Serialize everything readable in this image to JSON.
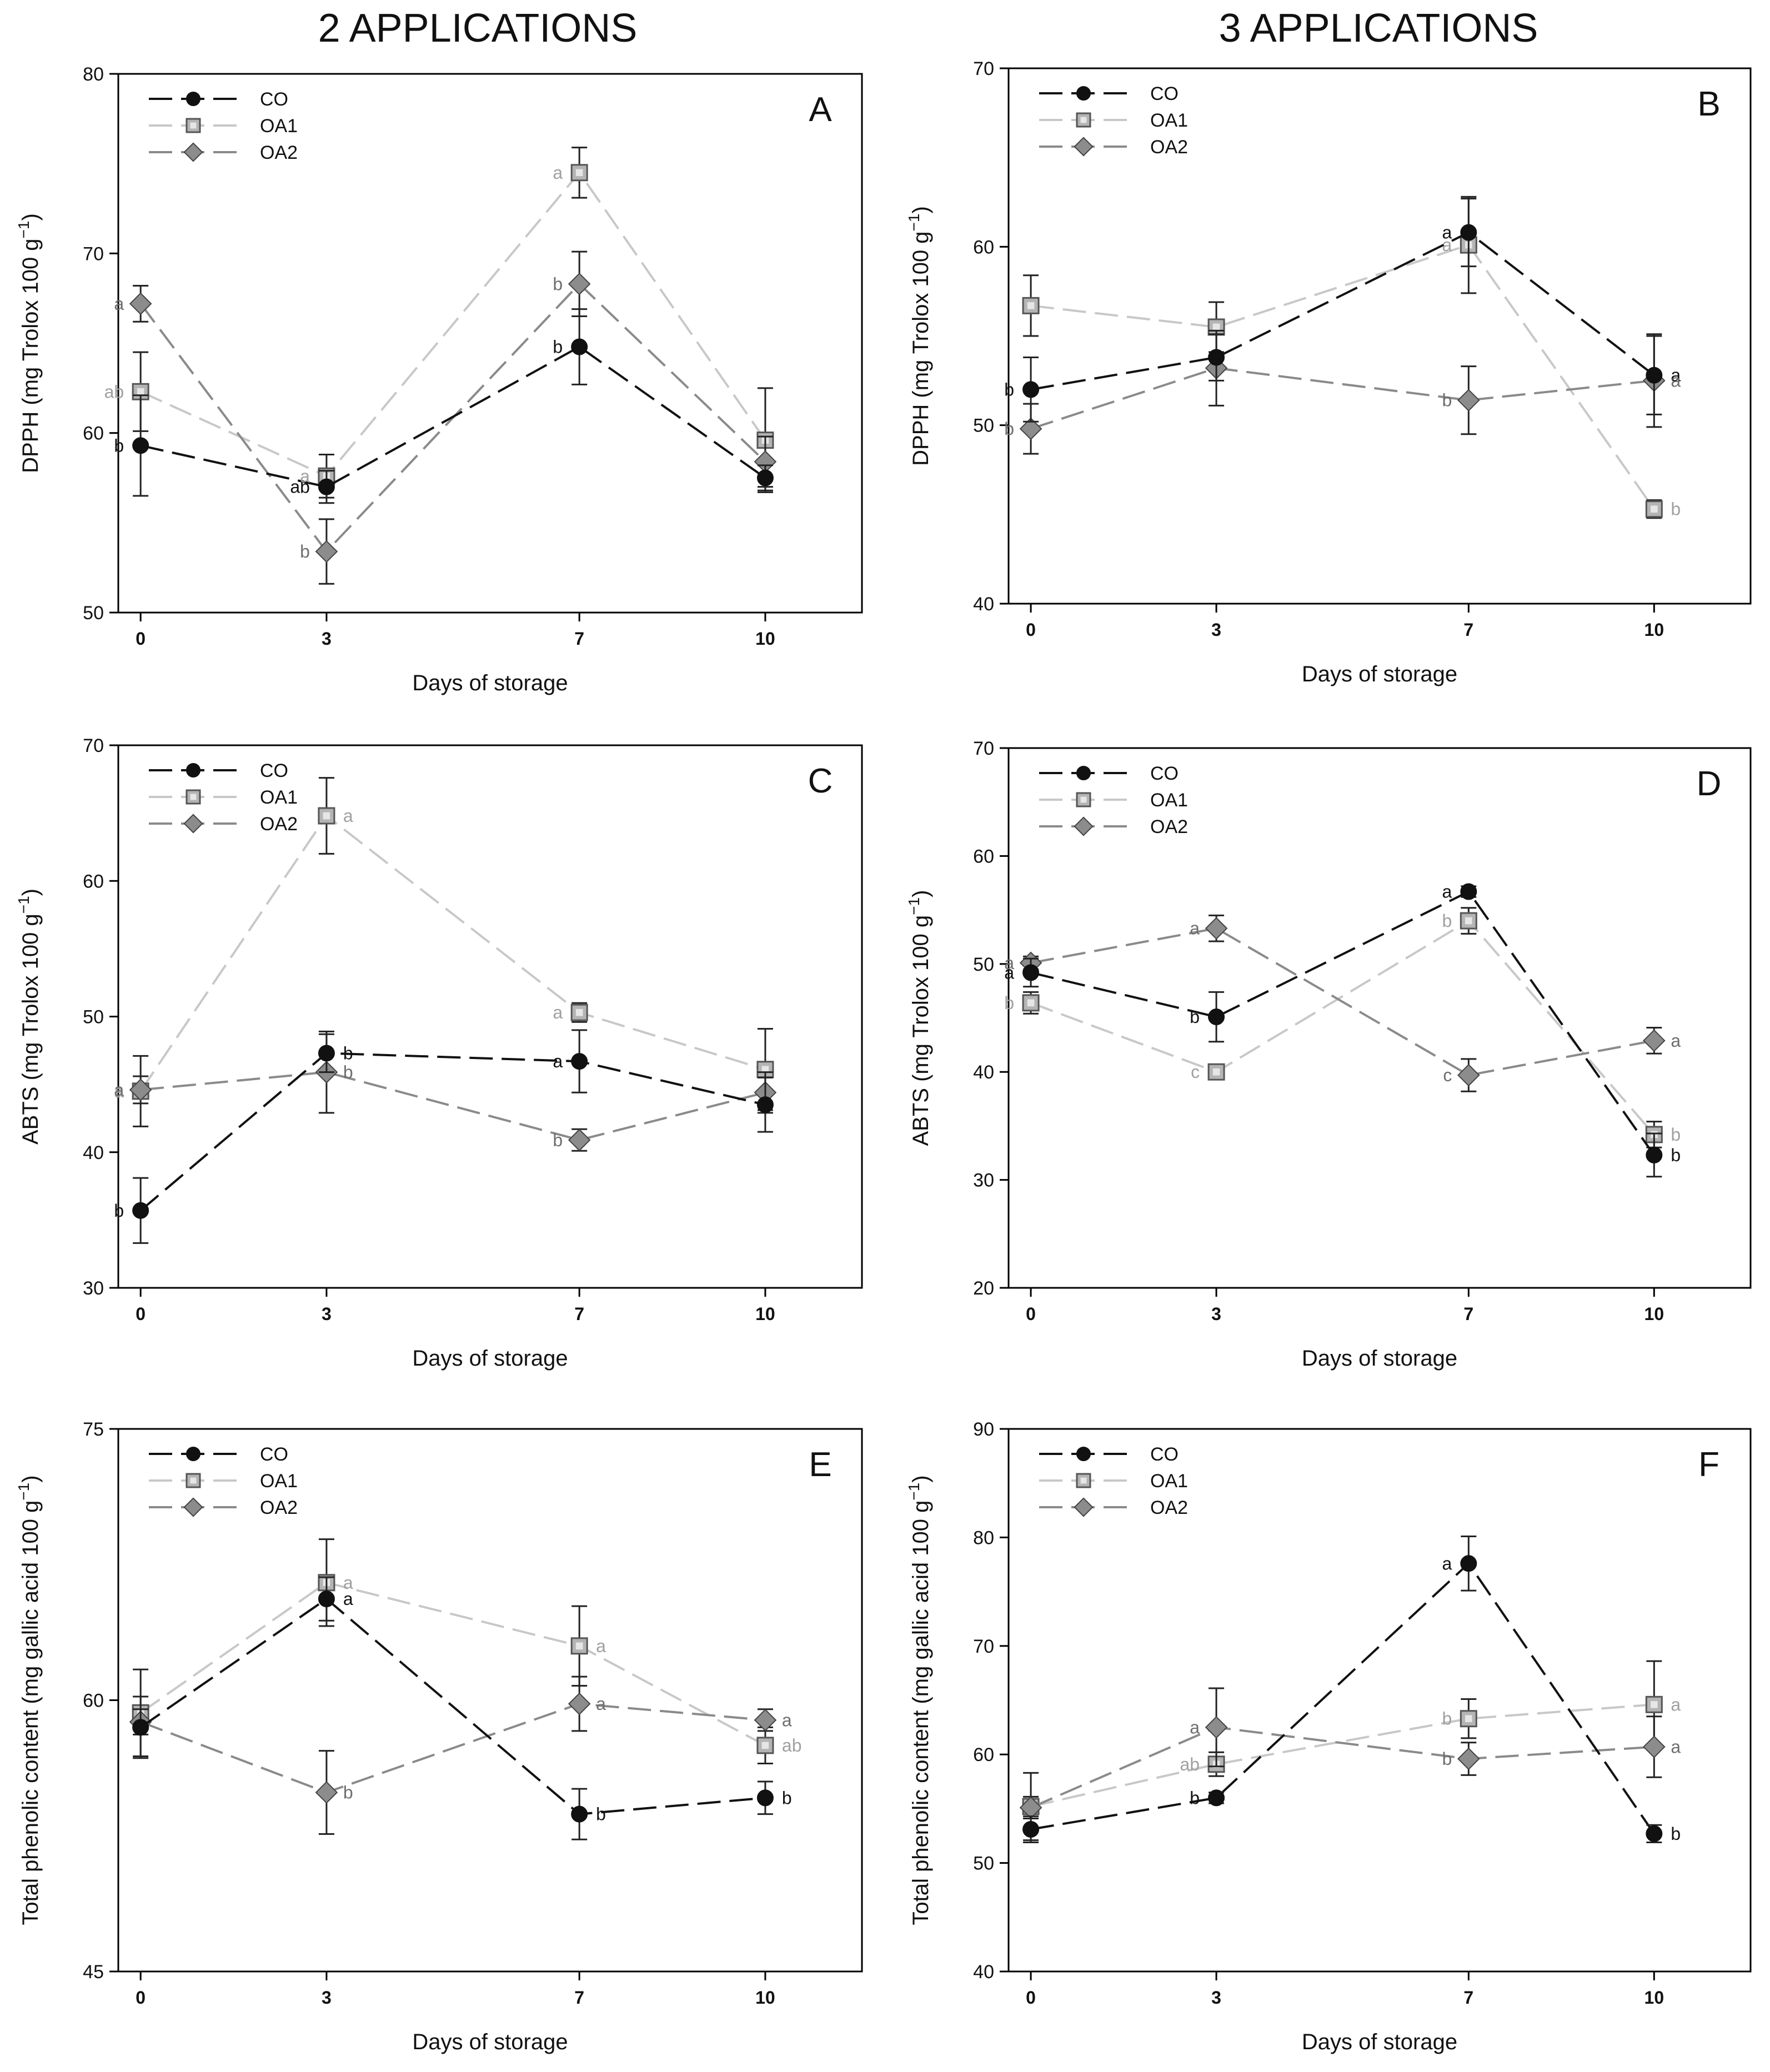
{
  "headings": {
    "left": "2 APPLICATIONS",
    "right": "3 APPLICATIONS"
  },
  "colors": {
    "CO": "#111111",
    "OA1": "#c8c8c8",
    "OA2": "#8a8a8a",
    "OA1_fill": "#b4b4b4",
    "OA2_fill": "#8c8c8c",
    "axis": "#000000"
  },
  "chart_data": [
    {
      "id": "A",
      "type": "line",
      "panel_label": "A",
      "xlabel": "Days of storage",
      "ylabel": "DPPH (mg Trolox 100 g⁻¹)",
      "x": [
        0,
        3,
        7,
        10
      ],
      "xticks": [
        "0",
        "3",
        "7",
        "10"
      ],
      "ylim": [
        50,
        80
      ],
      "yticks": [
        50,
        60,
        70,
        80
      ],
      "legend_location": "top-left",
      "series": [
        {
          "name": "CO",
          "values": [
            59.3,
            57.0,
            64.8,
            57.5
          ],
          "errors": [
            2.8,
            0.9,
            2.1,
            0.7
          ],
          "labels": [
            "b",
            "ab",
            "b",
            ""
          ]
        },
        {
          "name": "OA1",
          "values": [
            62.3,
            57.6,
            74.5,
            59.6
          ],
          "errors": [
            2.2,
            1.2,
            1.4,
            2.9
          ],
          "labels": [
            "ab",
            "a",
            "a",
            ""
          ]
        },
        {
          "name": "OA2",
          "values": [
            67.2,
            53.4,
            68.3,
            58.4
          ],
          "errors": [
            1.0,
            1.8,
            1.8,
            1.4
          ],
          "labels": [
            "a",
            "b",
            "b",
            ""
          ]
        }
      ]
    },
    {
      "id": "B",
      "type": "line",
      "panel_label": "B",
      "xlabel": "Days of storage",
      "ylabel": "DPPH (mg Trolox 100 g⁻¹)",
      "x": [
        0,
        3,
        7,
        10
      ],
      "xticks": [
        "0",
        "3",
        "7",
        "10"
      ],
      "ylim": [
        40,
        70
      ],
      "yticks": [
        40,
        50,
        60,
        70
      ],
      "legend_location": "top-left",
      "series": [
        {
          "name": "CO",
          "values": [
            52.0,
            53.8,
            60.8,
            52.8
          ],
          "errors": [
            1.8,
            1.3,
            1.9,
            2.2
          ],
          "labels": [
            "b",
            "",
            "a",
            "a"
          ]
        },
        {
          "name": "OA1",
          "values": [
            56.7,
            55.5,
            60.1,
            45.3
          ],
          "errors": [
            1.7,
            1.4,
            2.7,
            0.5
          ],
          "labels": [
            "",
            "",
            "a",
            "b"
          ]
        },
        {
          "name": "OA2",
          "values": [
            49.8,
            53.2,
            51.4,
            52.5
          ],
          "errors": [
            1.4,
            2.1,
            1.9,
            2.6
          ],
          "labels": [
            "b",
            "",
            "b",
            "a"
          ]
        }
      ]
    },
    {
      "id": "C",
      "type": "line",
      "panel_label": "C",
      "xlabel": "Days of storage",
      "ylabel": "ABTS (mg Trolox 100 g⁻¹)",
      "x": [
        0,
        3,
        7,
        10
      ],
      "xticks": [
        "0",
        "3",
        "7",
        "10"
      ],
      "ylim": [
        30,
        70
      ],
      "yticks": [
        30,
        40,
        50,
        60,
        70
      ],
      "legend_location": "top-left",
      "series": [
        {
          "name": "CO",
          "values": [
            35.7,
            47.3,
            46.7,
            43.5
          ],
          "errors": [
            2.4,
            1.4,
            2.3,
            2.0
          ],
          "labels": [
            "b",
            "b",
            "a",
            ""
          ]
        },
        {
          "name": "OA1",
          "values": [
            44.5,
            64.8,
            50.3,
            46.1
          ],
          "errors": [
            2.6,
            2.8,
            0.7,
            3.0
          ],
          "labels": [
            "a",
            "a",
            "a",
            ""
          ]
        },
        {
          "name": "OA2",
          "values": [
            44.6,
            45.9,
            40.9,
            44.4
          ],
          "errors": [
            1.0,
            3.0,
            0.8,
            1.5
          ],
          "labels": [
            "a",
            "b",
            "b",
            ""
          ]
        }
      ]
    },
    {
      "id": "D",
      "type": "line",
      "panel_label": "D",
      "xlabel": "Days of storage",
      "ylabel": "ABTS (mg Trolox 100 g⁻¹)",
      "x": [
        0,
        3,
        7,
        10
      ],
      "xticks": [
        "0",
        "3",
        "7",
        "10"
      ],
      "ylim": [
        20,
        70
      ],
      "yticks": [
        20,
        30,
        40,
        50,
        60,
        70
      ],
      "legend_location": "top-left",
      "series": [
        {
          "name": "CO",
          "values": [
            49.2,
            45.1,
            56.7,
            32.3
          ],
          "errors": [
            1.3,
            2.3,
            0.5,
            2.0
          ],
          "labels": [
            "a",
            "b",
            "a",
            "b"
          ]
        },
        {
          "name": "OA1",
          "values": [
            46.4,
            40.0,
            54.0,
            34.2
          ],
          "errors": [
            1.0,
            0.5,
            1.2,
            1.2
          ],
          "labels": [
            "b",
            "c",
            "b",
            "b"
          ]
        },
        {
          "name": "OA2",
          "values": [
            50.1,
            53.3,
            39.7,
            42.9
          ],
          "errors": [
            0.6,
            1.2,
            1.5,
            1.2
          ],
          "labels": [
            "a",
            "a",
            "c",
            "a"
          ]
        }
      ]
    },
    {
      "id": "E",
      "type": "line",
      "panel_label": "E",
      "xlabel": "Days of storage",
      "ylabel": "Total phenolic content (mg gallic acid 100 g⁻¹)",
      "x": [
        0,
        3,
        7,
        10
      ],
      "xticks": [
        "0",
        "3",
        "7",
        "10"
      ],
      "ylim": [
        45,
        75
      ],
      "yticks": [
        45,
        60,
        75
      ],
      "legend_location": "top-left",
      "series": [
        {
          "name": "CO",
          "values": [
            58.5,
            65.6,
            53.7,
            54.6
          ],
          "errors": [
            1.7,
            1.2,
            1.4,
            0.9
          ],
          "labels": [
            "",
            "a",
            "b",
            "b"
          ]
        },
        {
          "name": "OA1",
          "values": [
            59.3,
            66.5,
            63.0,
            57.5
          ],
          "errors": [
            2.4,
            2.4,
            2.2,
            1.0
          ],
          "labels": [
            "",
            "a",
            "a",
            "ab"
          ]
        },
        {
          "name": "OA2",
          "values": [
            58.8,
            54.9,
            59.8,
            58.9
          ],
          "errors": [
            0.7,
            2.3,
            1.5,
            0.6
          ],
          "labels": [
            "",
            "b",
            "a",
            "a"
          ]
        }
      ]
    },
    {
      "id": "F",
      "type": "line",
      "panel_label": "F",
      "xlabel": "Days of storage",
      "ylabel": "Total phenolic content (mg gallic acid 100 g⁻¹)",
      "x": [
        0,
        3,
        7,
        10
      ],
      "xticks": [
        "0",
        "3",
        "7",
        "10"
      ],
      "ylim": [
        40,
        90
      ],
      "yticks": [
        40,
        50,
        60,
        70,
        80,
        90
      ],
      "legend_location": "top-left",
      "series": [
        {
          "name": "CO",
          "values": [
            53.1,
            56.0,
            77.6,
            52.7
          ],
          "errors": [
            1.2,
            0.5,
            2.5,
            0.8
          ],
          "labels": [
            "",
            "b",
            "a",
            "b"
          ]
        },
        {
          "name": "OA1",
          "values": [
            55.2,
            59.1,
            63.3,
            64.6
          ],
          "errors": [
            3.1,
            1.1,
            1.8,
            4.0
          ],
          "labels": [
            "",
            "ab",
            "b",
            "a"
          ]
        },
        {
          "name": "OA2",
          "values": [
            55.1,
            62.5,
            59.6,
            60.7
          ],
          "errors": [
            1.0,
            3.6,
            1.5,
            2.8
          ],
          "labels": [
            "",
            "a",
            "b",
            "a"
          ]
        }
      ]
    }
  ]
}
